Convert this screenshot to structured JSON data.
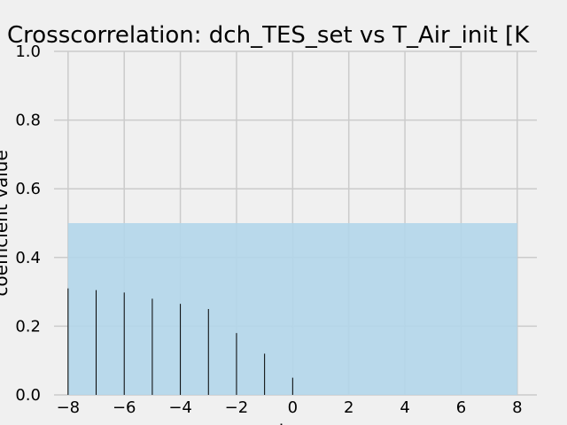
{
  "chart_data": {
    "type": "bar",
    "title": "Crosscorrelation: dch_TES_set vs T_Air_init [K",
    "xlabel": "lag",
    "ylabel": "coefficient value",
    "xlim": [
      -8.5,
      8.7
    ],
    "ylim": [
      0,
      1.0
    ],
    "xticks": [
      -8,
      -6,
      -4,
      -2,
      0,
      2,
      4,
      6,
      8
    ],
    "xtick_labels": [
      "−8",
      "−6",
      "−4",
      "−2",
      "0",
      "2",
      "4",
      "6",
      "8"
    ],
    "yticks": [
      0.0,
      0.2,
      0.4,
      0.6,
      0.8,
      1.0
    ],
    "ytick_labels": [
      "0.0",
      "0.2",
      "0.4",
      "0.6",
      "0.8",
      "1.0"
    ],
    "grid": true,
    "band": {
      "x": [
        -8,
        8
      ],
      "y": [
        0,
        0.5
      ],
      "color": "#b3d6ea"
    },
    "series": [
      {
        "x": [
          -8,
          -7,
          -6,
          -5,
          -4,
          -3,
          -2,
          -1,
          0
        ],
        "values": [
          0.31,
          0.305,
          0.298,
          0.28,
          0.265,
          0.25,
          0.18,
          0.12,
          0.05
        ],
        "color": "#000000"
      }
    ]
  }
}
